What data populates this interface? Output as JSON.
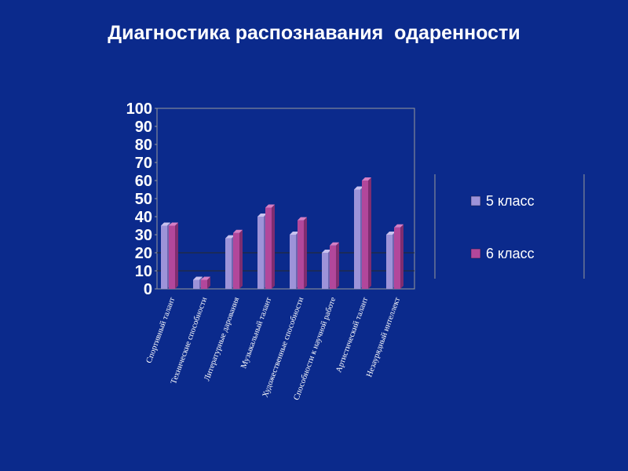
{
  "slide": {
    "title": "Диагностика распознавания  одаренности"
  },
  "colors": {
    "background": "#0b2a8c",
    "series_5": "#9d93d9",
    "series_5_side": "#6f66b0",
    "series_5_top": "#c9c2ef",
    "series_6": "#b2479b",
    "series_6_side": "#7f2d70",
    "series_6_top": "#d67fc4",
    "axis": "#9a9a9a",
    "gridline": "#2a2a2a"
  },
  "chart_data": {
    "type": "bar",
    "title": "",
    "xlabel": "",
    "ylabel": "",
    "ylim": [
      0,
      100
    ],
    "yticks": [
      0,
      10,
      20,
      30,
      40,
      50,
      60,
      70,
      80,
      90,
      100
    ],
    "gridlines": [
      10,
      20
    ],
    "legend_position": "right",
    "categories": [
      "Спортивный талант",
      "Технические способности",
      "Литературные дарования",
      "Музыкальный талант",
      "Художественные способности",
      "Способности к научной работе",
      "Артистический талант",
      "Незаурядный интеллект"
    ],
    "series": [
      {
        "name": "5 класс",
        "values": [
          35,
          5,
          28,
          40,
          30,
          20,
          55,
          30
        ]
      },
      {
        "name": "6 класс",
        "values": [
          35,
          5,
          31,
          45,
          38,
          24,
          60,
          34
        ]
      }
    ]
  }
}
